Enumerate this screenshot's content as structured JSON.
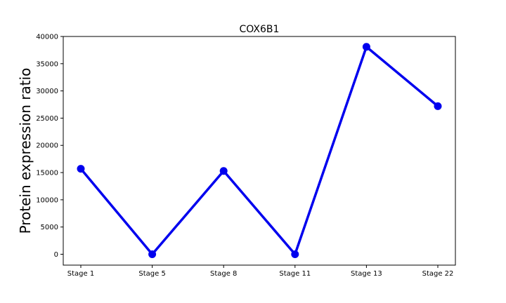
{
  "chart_data": {
    "type": "line",
    "title": "COX6B1",
    "xlabel": "",
    "ylabel": "Protein expression ratio",
    "categories": [
      "Stage 1",
      "Stage 5",
      "Stage 8",
      "Stage 11",
      "Stage 13",
      "Stage 22"
    ],
    "series": [
      {
        "values": [
          15700,
          0,
          15300,
          0,
          38100,
          27200
        ],
        "color": "#0000ee",
        "marker": "circle"
      }
    ],
    "ylim": [
      -2000,
      40000
    ],
    "yticks": [
      0,
      5000,
      10000,
      15000,
      20000,
      25000,
      30000,
      35000,
      40000
    ],
    "grid": false,
    "legend": false
  }
}
